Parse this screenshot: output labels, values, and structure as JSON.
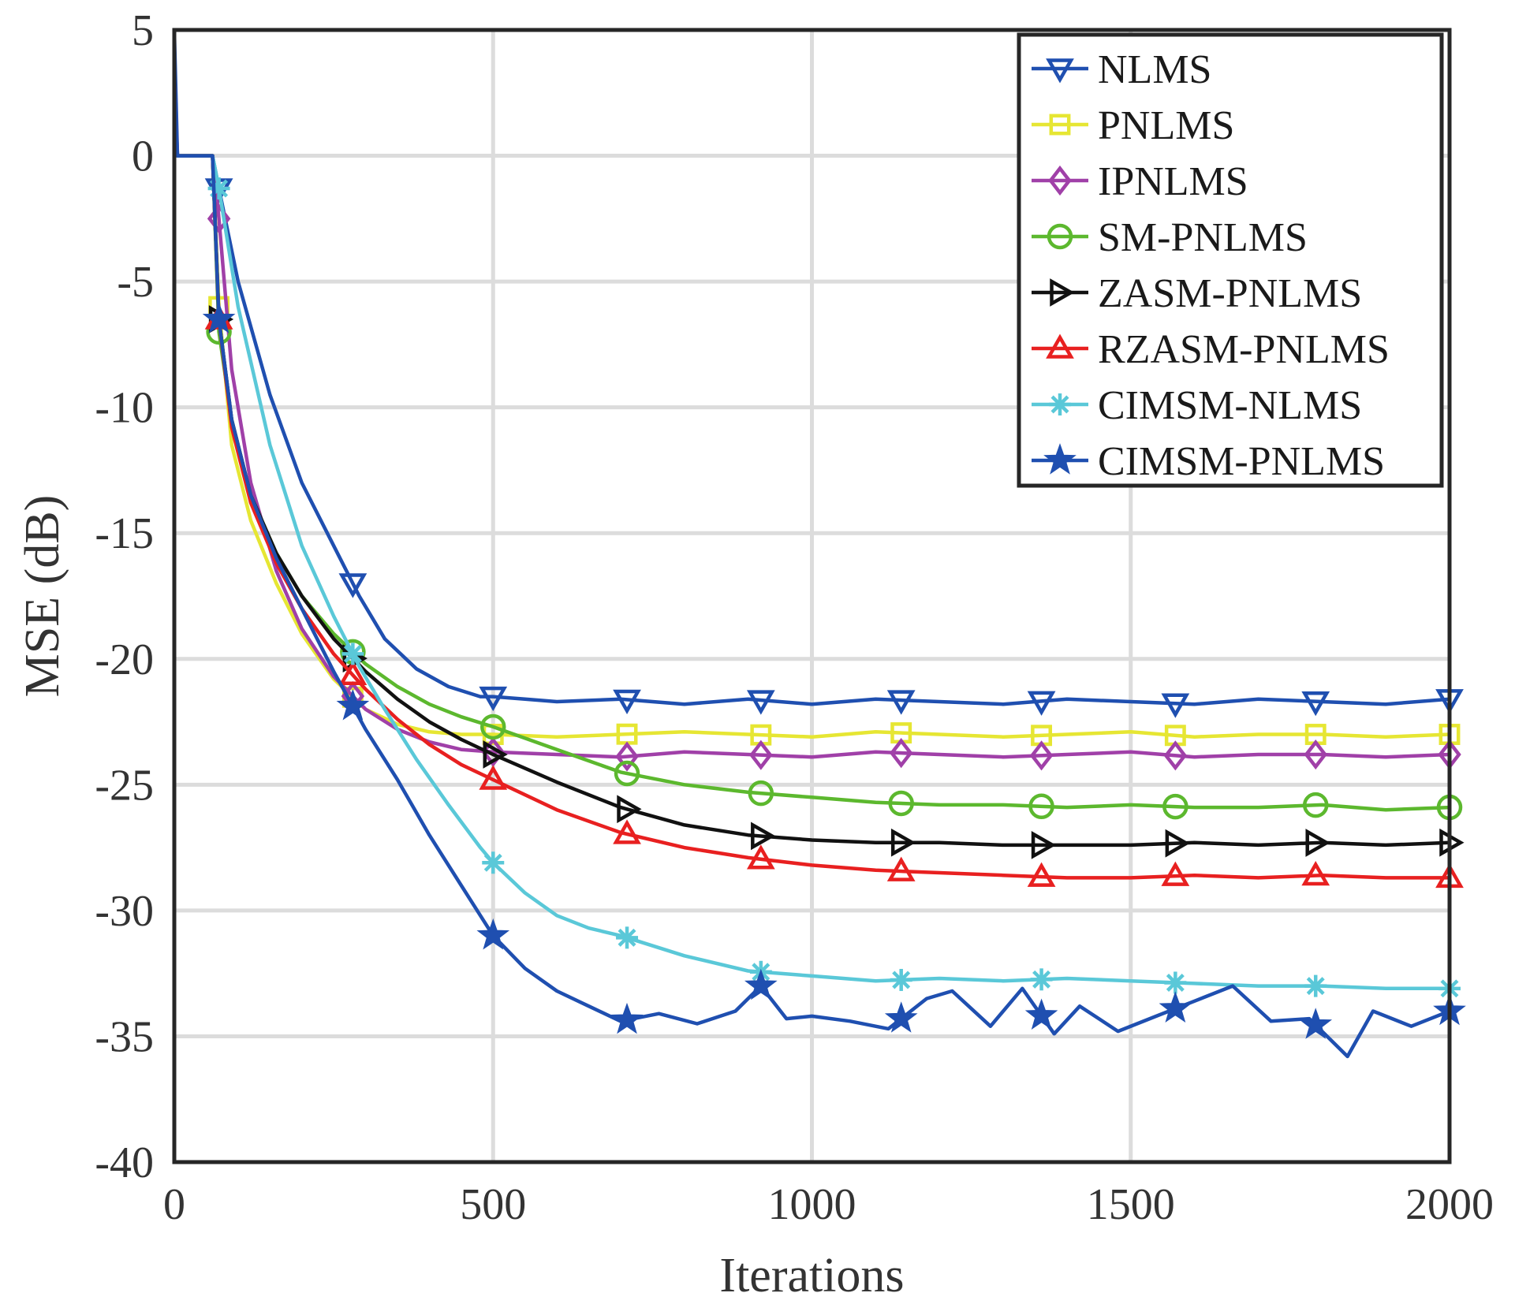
{
  "chart_data": {
    "type": "line",
    "title": "",
    "xlabel": "Iterations",
    "ylabel": "MSE (dB)",
    "xlim": [
      0,
      2000
    ],
    "ylim": [
      -40,
      5
    ],
    "xticks": [
      "0",
      "500",
      "1000",
      "1500",
      "2000"
    ],
    "yticks": [
      "5",
      "0",
      "-5",
      "-10",
      "-15",
      "-20",
      "-25",
      "-30",
      "-35",
      "-40"
    ],
    "grid": true,
    "legend_position": "top-right",
    "series": [
      {
        "name": "NLMS",
        "color": "#1f4fb0",
        "marker": "triangle-down",
        "x": [
          0,
          5,
          10,
          60,
          70,
          100,
          150,
          200,
          250,
          290,
          330,
          380,
          430,
          480,
          500,
          550,
          600,
          700,
          800,
          900,
          1000,
          1100,
          1200,
          1300,
          1400,
          1500,
          1600,
          1700,
          1800,
          1900,
          2000
        ],
        "y": [
          5,
          0,
          0,
          0,
          -1.3,
          -5,
          -9.5,
          -13,
          -15.5,
          -17.5,
          -19.2,
          -20.4,
          -21.1,
          -21.5,
          -21.5,
          -21.6,
          -21.7,
          -21.6,
          -21.8,
          -21.6,
          -21.8,
          -21.6,
          -21.7,
          -21.8,
          -21.6,
          -21.7,
          -21.8,
          -21.6,
          -21.7,
          -21.8,
          -21.6
        ],
        "marker_x": [
          70,
          280,
          500,
          710,
          920,
          1140,
          1360,
          1570,
          1790,
          2000
        ]
      },
      {
        "name": "PNLMS",
        "color": "#e6e633",
        "marker": "square",
        "x": [
          0,
          5,
          10,
          60,
          70,
          90,
          120,
          160,
          200,
          250,
          300,
          350,
          400,
          450,
          500,
          600,
          700,
          800,
          900,
          1000,
          1100,
          1200,
          1300,
          1400,
          1500,
          1600,
          1700,
          1800,
          1900,
          2000
        ],
        "y": [
          1,
          0,
          0,
          0,
          -6,
          -11.5,
          -14.5,
          -17,
          -19,
          -20.8,
          -22,
          -22.6,
          -22.9,
          -23.0,
          -23.0,
          -23.1,
          -23.0,
          -22.9,
          -23.0,
          -23.1,
          -22.9,
          -23.0,
          -23.1,
          -23.0,
          -22.9,
          -23.1,
          -23.0,
          -23.0,
          -23.1,
          -23.0
        ],
        "marker_x": [
          70,
          280,
          500,
          710,
          920,
          1140,
          1360,
          1570,
          1790,
          2000
        ]
      },
      {
        "name": "IPNLMS",
        "color": "#a040a8",
        "marker": "diamond",
        "x": [
          0,
          5,
          10,
          60,
          70,
          90,
          120,
          160,
          200,
          250,
          300,
          350,
          400,
          450,
          500,
          600,
          700,
          800,
          900,
          1000,
          1100,
          1200,
          1300,
          1400,
          1500,
          1600,
          1700,
          1800,
          1900,
          2000
        ],
        "y": [
          3,
          0,
          0,
          0,
          -2.5,
          -8.5,
          -13,
          -16.5,
          -18.8,
          -20.7,
          -22,
          -22.8,
          -23.3,
          -23.6,
          -23.7,
          -23.8,
          -23.9,
          -23.7,
          -23.8,
          -23.9,
          -23.7,
          -23.8,
          -23.9,
          -23.8,
          -23.7,
          -23.9,
          -23.8,
          -23.8,
          -23.9,
          -23.8
        ],
        "marker_x": [
          70,
          280,
          500,
          710,
          920,
          1140,
          1360,
          1570,
          1790,
          2000
        ]
      },
      {
        "name": "SM-PNLMS",
        "color": "#5cb82e",
        "marker": "circle",
        "x": [
          0,
          5,
          10,
          60,
          70,
          90,
          120,
          160,
          200,
          250,
          300,
          350,
          400,
          450,
          500,
          600,
          700,
          800,
          900,
          1000,
          1100,
          1200,
          1300,
          1400,
          1500,
          1600,
          1700,
          1800,
          1900,
          2000
        ],
        "y": [
          1,
          0,
          0,
          0,
          -7,
          -10.5,
          -13.5,
          -15.8,
          -17.5,
          -19,
          -20.2,
          -21.1,
          -21.8,
          -22.3,
          -22.7,
          -23.6,
          -24.5,
          -25.0,
          -25.3,
          -25.5,
          -25.7,
          -25.8,
          -25.8,
          -25.9,
          -25.8,
          -25.9,
          -25.9,
          -25.8,
          -26.0,
          -25.9
        ],
        "marker_x": [
          70,
          280,
          500,
          710,
          920,
          1140,
          1360,
          1570,
          1790,
          2000
        ]
      },
      {
        "name": "ZASM-PNLMS",
        "color": "#111111",
        "marker": "triangle-right",
        "x": [
          0,
          5,
          10,
          60,
          70,
          90,
          120,
          160,
          200,
          250,
          300,
          350,
          400,
          450,
          500,
          600,
          700,
          800,
          900,
          1000,
          1100,
          1200,
          1300,
          1400,
          1500,
          1600,
          1700,
          1800,
          1900,
          2000
        ],
        "y": [
          1,
          0,
          0,
          0,
          -6.5,
          -10.5,
          -13.5,
          -15.8,
          -17.5,
          -19.2,
          -20.5,
          -21.6,
          -22.5,
          -23.2,
          -23.8,
          -24.9,
          -25.9,
          -26.6,
          -27.0,
          -27.2,
          -27.3,
          -27.3,
          -27.4,
          -27.4,
          -27.4,
          -27.3,
          -27.4,
          -27.3,
          -27.4,
          -27.3
        ],
        "marker_x": [
          70,
          280,
          500,
          710,
          920,
          1140,
          1360,
          1570,
          1790,
          2000
        ]
      },
      {
        "name": "RZASM-PNLMS",
        "color": "#e82020",
        "marker": "triangle-up",
        "x": [
          0,
          5,
          10,
          60,
          70,
          90,
          120,
          160,
          200,
          250,
          300,
          350,
          400,
          450,
          500,
          600,
          700,
          800,
          900,
          1000,
          1100,
          1200,
          1300,
          1400,
          1500,
          1600,
          1700,
          1800,
          1900,
          2000
        ],
        "y": [
          1,
          0,
          0,
          0,
          -6.5,
          -10.8,
          -13.8,
          -16.2,
          -18,
          -19.8,
          -21.2,
          -22.4,
          -23.4,
          -24.2,
          -24.8,
          -26.0,
          -26.9,
          -27.5,
          -27.9,
          -28.2,
          -28.4,
          -28.5,
          -28.6,
          -28.7,
          -28.7,
          -28.6,
          -28.7,
          -28.6,
          -28.7,
          -28.7
        ],
        "marker_x": [
          70,
          280,
          500,
          710,
          920,
          1140,
          1360,
          1570,
          1790,
          2000
        ]
      },
      {
        "name": "CIMSM-NLMS",
        "color": "#5ac8d8",
        "marker": "asterisk",
        "x": [
          0,
          5,
          10,
          60,
          70,
          100,
          150,
          200,
          250,
          290,
          330,
          380,
          430,
          480,
          500,
          550,
          600,
          650,
          700,
          800,
          900,
          1000,
          1100,
          1200,
          1300,
          1400,
          1500,
          1600,
          1700,
          1800,
          1900,
          2000
        ],
        "y": [
          1,
          0,
          0,
          0,
          -1.3,
          -6,
          -11.5,
          -15.5,
          -18.3,
          -20.3,
          -22,
          -24,
          -25.8,
          -27.5,
          -28.1,
          -29.3,
          -30.2,
          -30.7,
          -31.0,
          -31.8,
          -32.4,
          -32.6,
          -32.8,
          -32.7,
          -32.8,
          -32.7,
          -32.8,
          -32.9,
          -33.0,
          -33.0,
          -33.1,
          -33.1
        ],
        "marker_x": [
          70,
          280,
          500,
          710,
          920,
          1140,
          1360,
          1570,
          1790,
          2000
        ]
      },
      {
        "name": "CIMSM-PNLMS",
        "color": "#1f4fb0",
        "marker": "star",
        "x": [
          0,
          5,
          10,
          60,
          70,
          90,
          120,
          160,
          200,
          250,
          300,
          350,
          400,
          450,
          500,
          550,
          600,
          650,
          700,
          760,
          820,
          880,
          920,
          960,
          1000,
          1060,
          1120,
          1180,
          1220,
          1280,
          1330,
          1380,
          1420,
          1480,
          1540,
          1600,
          1660,
          1720,
          1780,
          1840,
          1880,
          1940,
          2000
        ],
        "y": [
          3,
          0,
          0,
          0,
          -6.5,
          -10.5,
          -13.5,
          -16,
          -18,
          -20.5,
          -22.8,
          -24.8,
          -27,
          -29,
          -31,
          -32.3,
          -33.2,
          -33.8,
          -34.4,
          -34.1,
          -34.5,
          -34.0,
          -33.0,
          -34.3,
          -34.2,
          -34.4,
          -34.7,
          -33.5,
          -33.2,
          -34.6,
          -33.1,
          -34.9,
          -33.8,
          -34.8,
          -34.2,
          -33.6,
          -33.0,
          -34.4,
          -34.3,
          -35.8,
          -34.0,
          -34.6,
          -34.0
        ],
        "marker_x": [
          70,
          280,
          500,
          710,
          920,
          1140,
          1360,
          1570,
          1790,
          2000
        ]
      }
    ]
  }
}
